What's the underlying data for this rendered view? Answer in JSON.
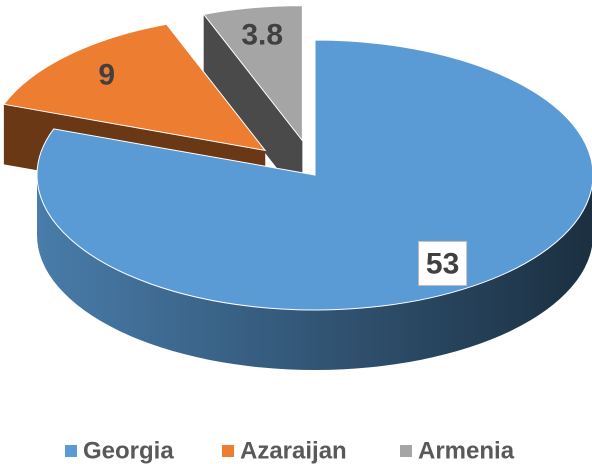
{
  "chart_data": {
    "type": "pie",
    "categories": [
      "Georgia",
      "Azaraijan",
      "Armenia"
    ],
    "values": [
      53,
      9,
      3.8
    ],
    "colors": [
      "#5b9bd5",
      "#ed7d31",
      "#a5a5a5"
    ],
    "exploded": [
      false,
      true,
      true
    ],
    "legend": "bottom"
  }
}
